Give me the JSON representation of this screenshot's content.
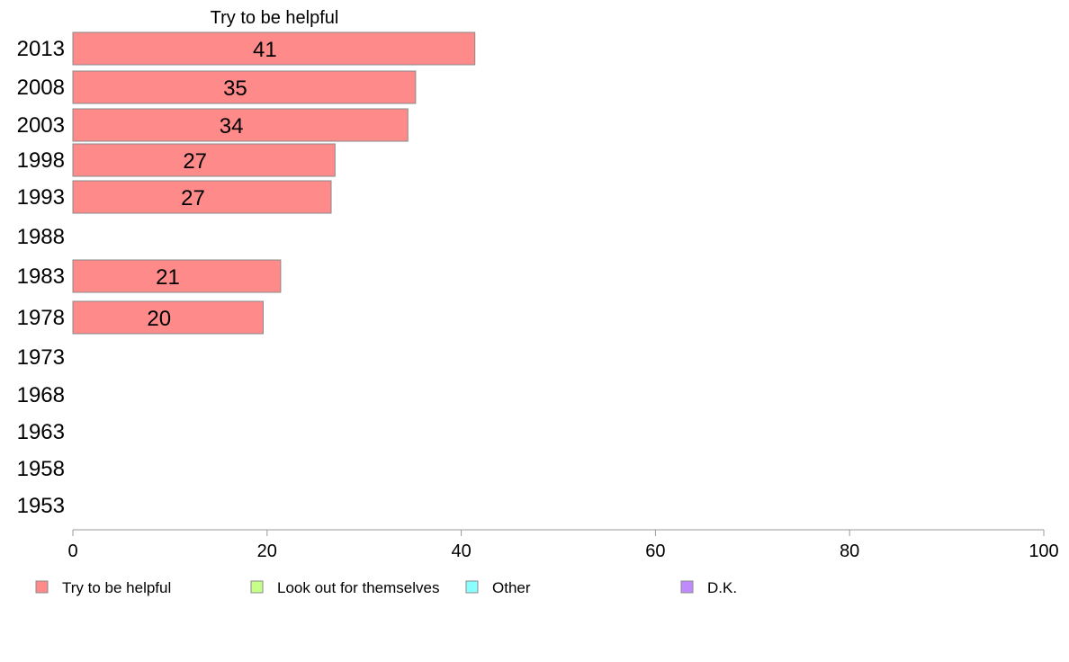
{
  "chart_data": {
    "type": "bar",
    "orientation": "horizontal",
    "title": "Try to be helpful",
    "categories": [
      "2013",
      "2008",
      "2003",
      "1998",
      "1993",
      "1988",
      "1983",
      "1978",
      "1973",
      "1968",
      "1963",
      "1958",
      "1953"
    ],
    "series": [
      {
        "name": "Try to be helpful",
        "color": "#ff8a8a",
        "values": [
          41.4,
          35.3,
          34.5,
          27.0,
          26.6,
          null,
          21.4,
          19.6,
          null,
          null,
          null,
          null,
          null
        ],
        "labels": [
          "41",
          "35",
          "34",
          "27",
          "27",
          "",
          "21",
          "20",
          "",
          "",
          "",
          "",
          ""
        ]
      }
    ],
    "xlim": [
      0,
      100
    ],
    "xticks": [
      "0",
      "20",
      "40",
      "60",
      "80",
      "100"
    ],
    "legend": {
      "placement": "bottom",
      "items": [
        {
          "label": "Try to be helpful",
          "color": "#ff8a8a"
        },
        {
          "label": "Look out for themselves",
          "color": "#c6ff8a"
        },
        {
          "label": "Other",
          "color": "#8affff"
        },
        {
          "label": "D.K.",
          "color": "#c08aff"
        }
      ]
    }
  }
}
